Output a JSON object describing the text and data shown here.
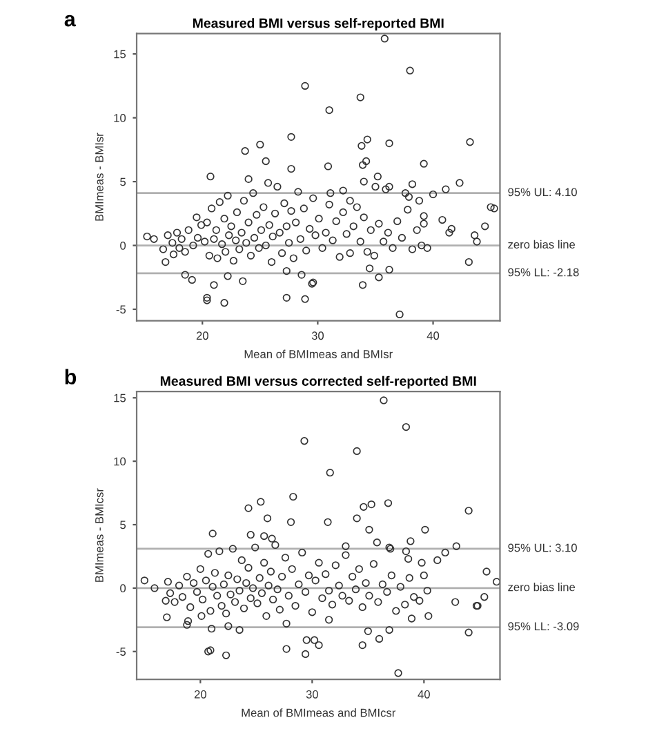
{
  "chart_data": [
    {
      "type": "scatter",
      "title": "Measured BMI versus self-reported BMI",
      "xlabel": "Mean of BMImeas and BMIsr",
      "ylabel": "BMImeas - BMIsr",
      "annotations": [
        "a"
      ],
      "xlim": [
        14.3,
        45.8
      ],
      "xticks": [
        20,
        30,
        40
      ],
      "ylim": [
        -5.9,
        16.6
      ],
      "yticks": [
        -5,
        0,
        5,
        10,
        15
      ],
      "grid": false,
      "legend": false,
      "marker": "circle",
      "ref_lines": [
        {
          "axis": "y",
          "value": 4.1,
          "label": "95% UL: 4.10",
          "color": "#b0b0b0"
        },
        {
          "axis": "y",
          "value": 0,
          "label": "zero bias line",
          "color": "#b0b0b0"
        },
        {
          "axis": "y",
          "value": -2.18,
          "label": "95% LL: -2.18",
          "color": "#b0b0b0"
        }
      ],
      "series": [
        {
          "color": "#333333",
          "x": [
            35.8,
            38.0,
            28.9,
            33.7,
            31.0,
            27.7,
            25.0,
            23.7,
            34.3,
            33.8,
            36.2,
            43.2,
            25.5,
            27.7,
            30.9,
            33.9,
            34.2,
            39.2,
            20.7,
            24.0,
            34.0,
            35.2,
            35.0,
            36.2,
            35.9,
            38.2,
            42.3,
            41.1,
            40.0,
            37.6,
            37.9,
            38.8,
            31.1,
            32.2,
            32.8,
            39.2,
            39.2,
            40.8,
            41.6,
            41.4,
            43.6,
            43.8,
            44.5,
            45.0,
            45.3,
            43.1,
            37.1,
            28.9,
            27.3,
            20.4,
            20.4,
            21.9,
            29.6,
            29.5,
            33.9,
            21.0,
            23.5,
            18.5,
            19.1,
            35.3,
            34.5,
            36.2,
            27.3,
            28.6,
            22.2,
            16.8,
            15.2,
            15.8,
            16.6
          ],
          "values": [
            16.2,
            13.7,
            12.5,
            11.6,
            10.6,
            8.5,
            7.9,
            7.4,
            8.3,
            7.8,
            8.0,
            8.1,
            6.6,
            6.0,
            6.2,
            6.3,
            6.6,
            6.4,
            5.4,
            5.2,
            5.0,
            5.4,
            4.6,
            4.6,
            4.4,
            4.8,
            4.9,
            4.4,
            4.0,
            4.1,
            3.8,
            3.5,
            4.1,
            4.3,
            3.5,
            2.3,
            1.7,
            2.0,
            1.3,
            1.0,
            0.8,
            0.3,
            1.5,
            3.0,
            2.9,
            -1.3,
            -5.4,
            -4.2,
            -4.1,
            -4.1,
            -4.3,
            -4.5,
            -2.9,
            -3.0,
            -3.1,
            -3.1,
            -2.8,
            -2.3,
            -2.7,
            -2.5,
            -1.8,
            -1.9,
            -2.0,
            -2.3,
            -2.4,
            -1.3,
            0.7,
            0.5,
            -0.3
          ]
        },
        {
          "color": "#333333",
          "x": [
            17.0,
            17.4,
            17.8,
            18.2,
            18.5,
            18.8,
            19.2,
            19.5,
            19.6,
            19.9,
            17.5,
            18.0,
            20.2,
            20.4,
            20.6,
            20.8,
            21.0,
            21.2,
            21.3,
            21.5,
            21.7,
            21.9,
            22.0,
            22.2,
            22.3,
            22.5,
            22.7,
            22.9,
            23.0,
            23.2,
            23.4,
            23.6,
            23.8,
            24.0,
            24.2,
            24.4,
            24.5,
            24.7,
            24.9,
            25.1,
            25.3,
            25.5,
            25.7,
            25.8,
            26.0,
            26.1,
            26.3,
            26.5,
            26.7,
            26.9,
            27.1,
            27.3,
            27.5,
            27.7,
            27.9,
            28.1,
            28.3,
            28.5,
            28.8,
            29.0,
            29.3,
            29.6,
            29.8,
            30.1,
            30.4,
            30.7,
            31.0,
            31.3,
            31.6,
            31.9,
            32.2,
            32.5,
            32.8,
            33.1,
            33.4,
            33.7,
            34.0,
            34.3,
            34.6,
            34.9,
            35.3,
            35.7,
            36.1,
            36.5,
            36.9,
            37.3,
            37.8,
            38.2,
            38.6,
            39.0,
            39.5
          ],
          "values": [
            0.8,
            0.2,
            1.0,
            0.5,
            -0.5,
            1.2,
            0.0,
            2.2,
            0.6,
            1.6,
            -0.7,
            -0.2,
            0.3,
            1.8,
            -0.8,
            2.9,
            0.5,
            1.2,
            -1.0,
            3.4,
            0.1,
            2.1,
            -0.5,
            3.9,
            0.8,
            1.5,
            -1.2,
            0.4,
            2.6,
            -0.3,
            1.0,
            3.5,
            0.2,
            1.8,
            -0.8,
            4.1,
            0.6,
            2.4,
            -0.2,
            1.2,
            3.0,
            0.0,
            4.9,
            1.6,
            -1.3,
            0.7,
            2.5,
            4.6,
            1.0,
            -0.6,
            3.3,
            1.5,
            0.2,
            2.7,
            -1.0,
            1.8,
            4.2,
            0.5,
            2.9,
            -0.4,
            1.3,
            3.7,
            0.8,
            2.1,
            -0.2,
            1.0,
            3.2,
            0.4,
            1.9,
            -0.9,
            2.6,
            0.9,
            -0.6,
            1.5,
            3.0,
            0.3,
            2.2,
            -0.5,
            1.2,
            -0.8,
            1.7,
            0.3,
            1.0,
            -0.2,
            1.9,
            0.6,
            2.8,
            -0.3,
            1.2,
            0.0,
            -0.2
          ]
        }
      ]
    },
    {
      "type": "scatter",
      "title": "Measured BMI versus corrected self-reported BMI",
      "xlabel": "Mean of BMImeas and BMIcsr",
      "ylabel": "BMImeas - BMIcsr",
      "annotations": [
        "b"
      ],
      "xlim": [
        14.3,
        46.8
      ],
      "xticks": [
        20,
        30,
        40
      ],
      "ylim": [
        -7.2,
        15.5
      ],
      "yticks": [
        -5,
        0,
        5,
        10,
        15
      ],
      "grid": false,
      "legend": false,
      "marker": "circle",
      "ref_lines": [
        {
          "axis": "y",
          "value": 3.1,
          "label": "95% UL: 3.10",
          "color": "#b0b0b0"
        },
        {
          "axis": "y",
          "value": 0,
          "label": "zero bias line",
          "color": "#b0b0b0"
        },
        {
          "axis": "y",
          "value": -3.09,
          "label": "95% LL: -3.09",
          "color": "#b0b0b0"
        }
      ],
      "series": [
        {
          "color": "#333333",
          "x": [
            36.4,
            38.4,
            29.3,
            34.0,
            31.6,
            28.3,
            25.4,
            24.3,
            35.3,
            36.8,
            34.6,
            34.0,
            26.0,
            28.1,
            31.4,
            44.0,
            40.1,
            35.1,
            21.1,
            24.5,
            25.7,
            26.4,
            33.0,
            38.8,
            42.9,
            35.8,
            36.9,
            37.0,
            41.9,
            38.4,
            38.6,
            41.2,
            39.8,
            45.6,
            46.5,
            45.4,
            44.7,
            44.8,
            42.8,
            40.4,
            38.9,
            44.0,
            35.0,
            36.9,
            36.0,
            34.5,
            37.7,
            29.4,
            27.7,
            22.3,
            20.7,
            20.9,
            29.5,
            30.2,
            30.6,
            21.0,
            23.5,
            22.5,
            18.9,
            18.8,
            17.0,
            20.1,
            27.7,
            31.5,
            15.0,
            15.9,
            16.9,
            17.1
          ],
          "values": [
            14.8,
            12.7,
            11.6,
            10.8,
            9.1,
            7.2,
            6.8,
            6.3,
            6.6,
            6.7,
            6.4,
            5.5,
            5.5,
            5.2,
            5.2,
            6.1,
            4.6,
            4.6,
            4.3,
            4.2,
            4.1,
            3.9,
            3.3,
            3.7,
            3.3,
            3.6,
            3.2,
            3.1,
            2.8,
            2.9,
            2.3,
            2.2,
            2.0,
            1.3,
            0.5,
            -0.7,
            -1.4,
            -1.4,
            -1.1,
            -2.2,
            -2.4,
            -3.5,
            -3.4,
            -3.3,
            -4.0,
            -4.5,
            -6.7,
            -5.2,
            -4.8,
            -5.3,
            -5.0,
            -4.9,
            -4.1,
            -4.1,
            -4.5,
            -3.2,
            -3.3,
            -3.0,
            -2.6,
            -2.9,
            -2.3,
            -2.2,
            -2.8,
            -2.5,
            0.6,
            0.0,
            -1.0,
            0.5
          ]
        },
        {
          "color": "#333333",
          "x": [
            17.3,
            17.7,
            18.1,
            18.4,
            18.8,
            19.1,
            19.4,
            19.7,
            20.0,
            20.2,
            20.5,
            20.7,
            20.9,
            21.1,
            21.3,
            21.5,
            21.7,
            21.9,
            22.1,
            22.3,
            22.5,
            22.7,
            22.9,
            23.1,
            23.3,
            23.5,
            23.7,
            23.9,
            24.1,
            24.3,
            24.5,
            24.7,
            24.9,
            25.1,
            25.3,
            25.5,
            25.7,
            25.9,
            26.1,
            26.3,
            26.5,
            26.7,
            26.9,
            27.1,
            27.3,
            27.6,
            27.9,
            28.2,
            28.5,
            28.8,
            29.1,
            29.4,
            29.7,
            30.0,
            30.3,
            30.6,
            30.9,
            31.2,
            31.5,
            31.8,
            32.1,
            32.4,
            32.7,
            33.0,
            33.3,
            33.6,
            33.9,
            34.2,
            34.5,
            34.8,
            35.1,
            35.5,
            35.9,
            36.3,
            36.7,
            37.1,
            37.5,
            37.9,
            38.3,
            38.7,
            39.1,
            39.6,
            40.0,
            40.3
          ],
          "values": [
            -0.4,
            -1.1,
            0.2,
            -0.7,
            0.9,
            -1.5,
            0.4,
            -0.3,
            1.5,
            -0.9,
            0.6,
            2.7,
            -1.8,
            0.1,
            1.2,
            -0.6,
            2.9,
            -1.4,
            0.3,
            -2.0,
            1.0,
            -0.5,
            3.1,
            -1.1,
            0.7,
            -0.2,
            2.2,
            -1.6,
            0.4,
            1.6,
            -0.8,
            0.0,
            3.2,
            -1.2,
            0.8,
            -0.4,
            2.0,
            -2.2,
            0.2,
            1.3,
            -0.9,
            3.4,
            -0.1,
            -1.7,
            0.9,
            2.4,
            -0.6,
            1.5,
            -1.4,
            0.3,
            2.8,
            -0.3,
            1.0,
            -1.9,
            0.6,
            2.0,
            -0.8,
            1.1,
            -0.2,
            -1.3,
            1.8,
            0.2,
            -0.6,
            2.6,
            -1.0,
            0.9,
            -0.1,
            1.5,
            -1.5,
            0.4,
            -0.6,
            1.9,
            -1.1,
            0.3,
            -0.3,
            1.0,
            -1.8,
            0.1,
            -1.3,
            0.8,
            -0.7,
            -1.0,
            1.0,
            -0.2
          ]
        }
      ]
    }
  ]
}
